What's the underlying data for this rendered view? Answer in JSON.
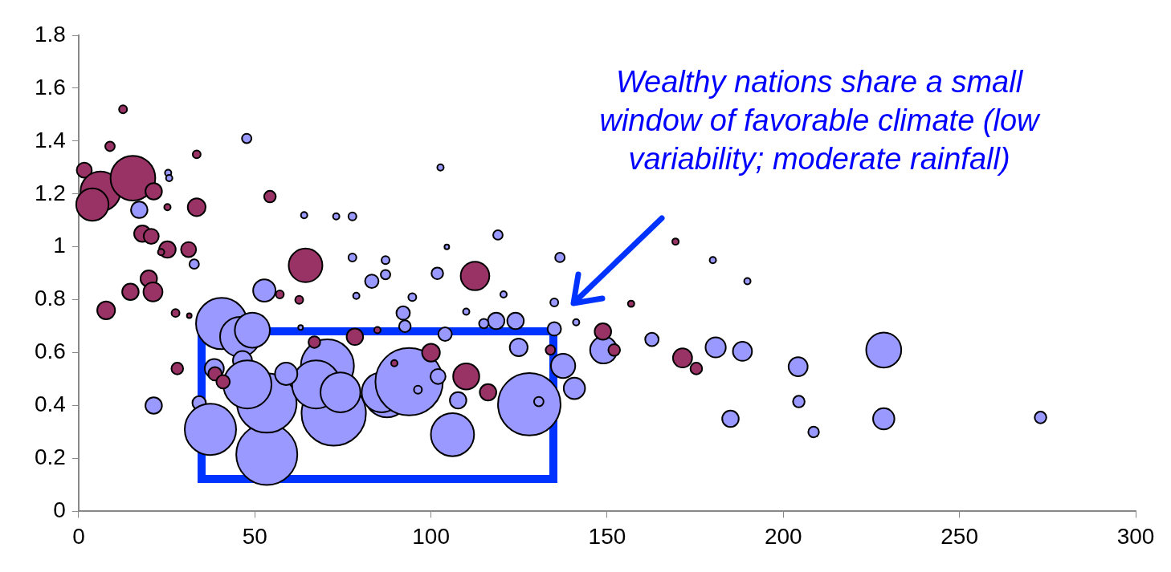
{
  "chart_data": {
    "type": "bubble",
    "xlim": [
      0,
      300
    ],
    "xticks": [
      0,
      50,
      100,
      150,
      200,
      250,
      300
    ],
    "ylim": [
      0,
      1.8
    ],
    "yticks": [
      0,
      0.2,
      0.4,
      0.6,
      0.8,
      1,
      1.2,
      1.4,
      1.6,
      1.8
    ],
    "grid": false,
    "legend": false,
    "annotations": [
      "Wealthy nations share a small window of favorable climate (low variability; moderate rainfall)"
    ],
    "series": [
      {
        "color": "#9999ff",
        "x": [
          17.2,
          25.4,
          25.7,
          47.7,
          32.8,
          40.6,
          45.8,
          49.3,
          52.7,
          46.5,
          38.5,
          21.3,
          34.2,
          37.4,
          53.4,
          53.4,
          47.9,
          72.4,
          70.6,
          67.4,
          74.3,
          58.9,
          87.5,
          86,
          93.8,
          102,
          96.3,
          107.7,
          106.1,
          127.9,
          137.5,
          140.7,
          124.9,
          149,
          135,
          124,
          118.5,
          115,
          141.2,
          92.6,
          92.1,
          104,
          110,
          101.8,
          83.2,
          87.1,
          87.1,
          78.8,
          94.7,
          104.5,
          119,
          120.6,
          136.6,
          135,
          102.7,
          77.7,
          73.1,
          64,
          77.7,
          63,
          162.7,
          180,
          189.8,
          180.8,
          188.4,
          204.2,
          228.5,
          204.4,
          185,
          208.6,
          228.5,
          273,
          130.6
        ],
        "values": [
          1.14,
          1.28,
          1.26,
          1.41,
          0.935,
          0.71,
          0.66,
          0.685,
          0.835,
          0.57,
          0.54,
          0.4,
          0.41,
          0.31,
          0.215,
          0.41,
          0.48,
          0.37,
          0.55,
          0.48,
          0.45,
          0.52,
          0.44,
          0.45,
          0.49,
          0.51,
          0.46,
          0.42,
          0.29,
          0.405,
          0.55,
          0.465,
          0.62,
          0.61,
          0.69,
          0.72,
          0.72,
          0.71,
          0.715,
          0.7,
          0.75,
          0.67,
          0.755,
          0.9,
          0.87,
          0.895,
          0.95,
          0.815,
          0.81,
          1.0,
          1.045,
          0.82,
          0.96,
          0.79,
          1.3,
          1.115,
          1.115,
          1.12,
          0.96,
          0.695,
          0.65,
          0.95,
          0.87,
          0.62,
          0.605,
          0.547,
          0.61,
          0.415,
          0.35,
          0.3,
          0.35,
          0.355,
          0.415
        ],
        "sizes": [
          0.06,
          0.009,
          0.009,
          0.02,
          0.02,
          0.58,
          0.35,
          0.27,
          0.11,
          0.08,
          0.08,
          0.06,
          0.04,
          0.58,
          0.82,
          0.78,
          0.51,
          0.91,
          0.62,
          0.51,
          0.35,
          0.11,
          0.44,
          0.35,
          1,
          0.05,
          0.014,
          0.06,
          0.41,
          0.86,
          0.13,
          0.1,
          0.07,
          0.16,
          0.04,
          0.06,
          0.06,
          0.02,
          0.009,
          0.03,
          0.04,
          0.04,
          0.009,
          0.03,
          0.04,
          0.02,
          0.014,
          0.009,
          0.014,
          0.005,
          0.02,
          0.009,
          0.02,
          0.014,
          0.009,
          0.014,
          0.009,
          0.009,
          0.014,
          0.005,
          0.04,
          0.009,
          0.009,
          0.09,
          0.08,
          0.08,
          0.27,
          0.03,
          0.06,
          0.025,
          0.1,
          0.03,
          0.02
        ]
      },
      {
        "color": "#993366",
        "x": [
          1.6,
          6.2,
          15.4,
          3.9,
          21.3,
          8.9,
          12.6,
          33.5,
          25.2,
          33.5,
          54.3,
          18.1,
          20.6,
          25.2,
          23.4,
          31.2,
          19.9,
          21.1,
          14.7,
          7.8,
          27.5,
          31.4,
          64.4,
          57.1,
          62.6,
          112.5,
          169.4,
          156.8,
          148.8,
          152,
          171.4,
          175.3,
          110,
          116.2,
          100,
          78.4,
          89.6,
          28,
          38.7,
          41,
          133.9,
          84.8,
          66.9
        ],
        "values": [
          1.29,
          1.21,
          1.26,
          1.16,
          1.21,
          1.38,
          1.52,
          1.35,
          1.15,
          1.15,
          1.19,
          1.05,
          1.04,
          0.99,
          0.98,
          0.99,
          0.88,
          0.83,
          0.83,
          0.76,
          0.75,
          0.74,
          0.93,
          0.82,
          0.8,
          0.89,
          1.02,
          0.785,
          0.68,
          0.61,
          0.58,
          0.54,
          0.51,
          0.45,
          0.6,
          0.66,
          0.56,
          0.54,
          0.52,
          0.49,
          0.61,
          0.685,
          0.64
        ],
        "sizes": [
          0.05,
          0.35,
          0.44,
          0.23,
          0.06,
          0.02,
          0.014,
          0.014,
          0.009,
          0.07,
          0.03,
          0.06,
          0.05,
          0.06,
          0.009,
          0.05,
          0.06,
          0.08,
          0.06,
          0.07,
          0.014,
          0.005,
          0.25,
          0.014,
          0.014,
          0.18,
          0.009,
          0.009,
          0.06,
          0.03,
          0.08,
          0.03,
          0.15,
          0.06,
          0.07,
          0.06,
          0.009,
          0.03,
          0.04,
          0.04,
          0.02,
          0.009,
          0.03
        ]
      }
    ]
  }
}
